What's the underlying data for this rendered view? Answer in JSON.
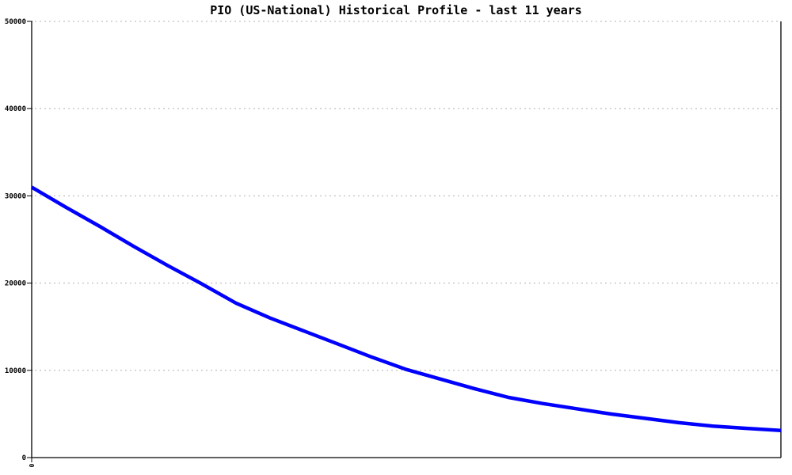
{
  "title": "PIO (US-National) Historical Profile - last 11 years",
  "chart_data": {
    "type": "line",
    "title": "PIO (US-National) Historical Profile - last 11 years",
    "xlabel": "",
    "ylabel": "",
    "xlim": [
      0,
      11
    ],
    "ylim": [
      0,
      50000
    ],
    "yticks": [
      0,
      10000,
      20000,
      30000,
      40000,
      50000
    ],
    "ytick_labels": [
      "0",
      "10000",
      "20000",
      "30000",
      "40000",
      "50000"
    ],
    "xticks": [
      0
    ],
    "xtick_labels": [
      "0"
    ],
    "grid": "horizontal-dotted",
    "legend_position": "none",
    "series": [
      {
        "name": "PIO (US-National)",
        "color": "#0000ff",
        "x": [
          0,
          0.5,
          1,
          1.5,
          2,
          2.5,
          3,
          3.5,
          4,
          4.5,
          5,
          5.5,
          6,
          6.5,
          7,
          7.5,
          8,
          8.5,
          9,
          9.5,
          10,
          10.5,
          11
        ],
        "values": [
          31000,
          28700,
          26500,
          24200,
          22000,
          19900,
          17700,
          16000,
          14500,
          13000,
          11500,
          10100,
          9000,
          7900,
          6900,
          6200,
          5600,
          5000,
          4500,
          4000,
          3600,
          3350,
          3100
        ]
      }
    ]
  },
  "colors": {
    "background": "#ffffff",
    "axis": "#000000",
    "grid": "#b0b0b0",
    "line": "#0000ff",
    "text": "#000000"
  }
}
